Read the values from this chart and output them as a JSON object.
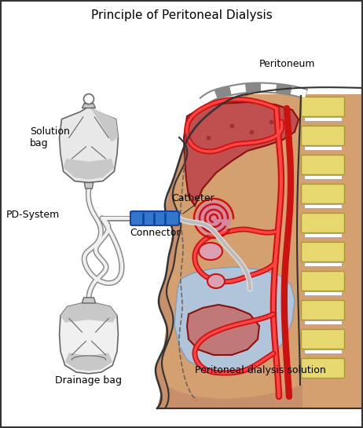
{
  "title": "Principle of Peritoneal Dialysis",
  "title_fontsize": 11,
  "labels": {
    "solution_bag": "Solution\nbag",
    "pd_system": "PD-System",
    "connector": "Connector",
    "catheter": "Catheter",
    "peritoneum": "Peritoneum",
    "pd_solution": "Peritoneal dialysis solution",
    "drainage_bag": "Drainage bag"
  },
  "colors": {
    "bg": "#ffffff",
    "bag_fill": "#e8e8e8",
    "bag_shade": "#c8c8c8",
    "bag_line": "#666666",
    "tube_fill": "#e0e0e0",
    "tube_line": "#888888",
    "connector_blue": "#3377cc",
    "connector_dark": "#1144aa",
    "body_skin": "#d4956a",
    "body_inner": "#e8b090",
    "abdominal_wall": "#c8956a",
    "spine_yellow": "#e8d870",
    "spine_border": "#888820",
    "vessel_red": "#cc1111",
    "vessel_dark": "#880000",
    "liver_fill": "#c05050",
    "liver_border": "#881111",
    "colon_fill": "#d488a0",
    "colon_border": "#cc2222",
    "si_fill": "#e0a0b8",
    "solution_blue": "#aaccee",
    "solution_border": "#7799bb",
    "peritoneum_gray": "#999999",
    "lower_organ": "#c07878",
    "border": "#333333"
  },
  "figsize": [
    4.62,
    5.45
  ],
  "dpi": 100
}
